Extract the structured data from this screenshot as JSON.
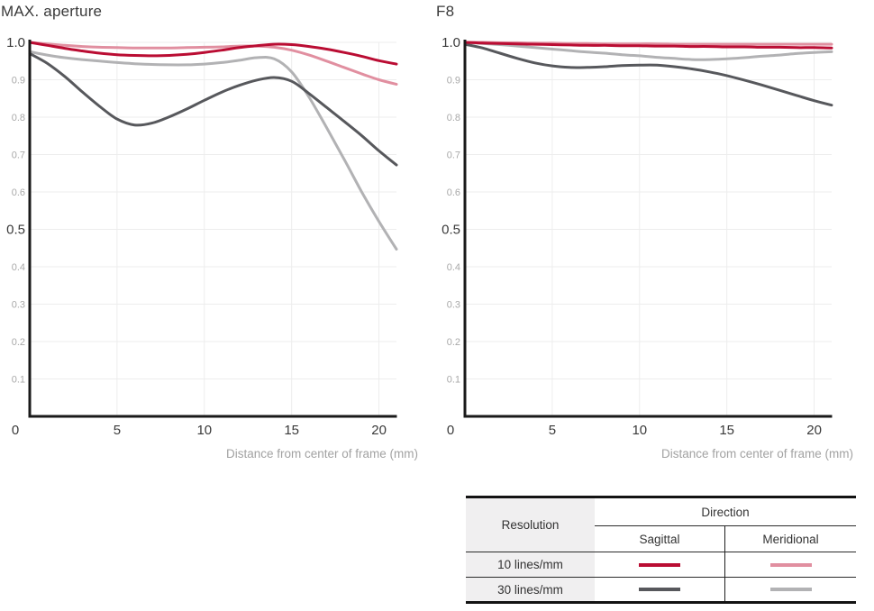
{
  "chart_data": [
    {
      "type": "line",
      "title": "MAX. aperture",
      "xlabel": "Distance from center of frame (mm)",
      "ylabel": "",
      "xlim": [
        0,
        21
      ],
      "ylim": [
        0,
        1.0
      ],
      "x_ticks": [
        0,
        5,
        10,
        15,
        20
      ],
      "y_ticks_major": [
        1.0,
        0.5
      ],
      "y_ticks_minor": [
        0.9,
        0.8,
        0.7,
        0.6,
        0.4,
        0.3,
        0.2,
        0.1
      ],
      "grid": true,
      "legend_position": "separate-table",
      "x": [
        0,
        1,
        2,
        3,
        4,
        5,
        6,
        7,
        8,
        9,
        10,
        11,
        12,
        13,
        14,
        15,
        16,
        17,
        18,
        19,
        20,
        21
      ],
      "series": [
        {
          "name": "Sagittal 10 lines/mm",
          "color": "#ba0d33",
          "values": [
            1.0,
            0.992,
            0.984,
            0.977,
            0.971,
            0.967,
            0.965,
            0.964,
            0.965,
            0.968,
            0.973,
            0.979,
            0.986,
            0.991,
            0.995,
            0.994,
            0.989,
            0.982,
            0.973,
            0.963,
            0.951,
            0.942
          ]
        },
        {
          "name": "Meridional 10 lines/mm",
          "color": "#e18fa0",
          "values": [
            1.0,
            0.996,
            0.992,
            0.989,
            0.987,
            0.986,
            0.985,
            0.985,
            0.985,
            0.986,
            0.987,
            0.988,
            0.99,
            0.99,
            0.987,
            0.979,
            0.966,
            0.95,
            0.933,
            0.916,
            0.9,
            0.888
          ]
        },
        {
          "name": "Sagittal 30 lines/mm",
          "color": "#57585c",
          "values": [
            0.97,
            0.944,
            0.909,
            0.868,
            0.829,
            0.795,
            0.779,
            0.784,
            0.801,
            0.822,
            0.845,
            0.867,
            0.885,
            0.899,
            0.906,
            0.896,
            0.863,
            0.826,
            0.789,
            0.751,
            0.71,
            0.672
          ]
        },
        {
          "name": "Meridional 30 lines/mm",
          "color": "#b2b2b4",
          "values": [
            0.975,
            0.966,
            0.959,
            0.954,
            0.95,
            0.946,
            0.943,
            0.941,
            0.94,
            0.94,
            0.942,
            0.946,
            0.952,
            0.959,
            0.956,
            0.921,
            0.853,
            0.772,
            0.688,
            0.601,
            0.521,
            0.447
          ]
        }
      ]
    },
    {
      "type": "line",
      "title": "F8",
      "xlabel": "Distance from center of frame (mm)",
      "ylabel": "",
      "xlim": [
        0,
        21
      ],
      "ylim": [
        0,
        1.0
      ],
      "x_ticks": [
        0,
        5,
        10,
        15,
        20
      ],
      "y_ticks_major": [
        1.0,
        0.5
      ],
      "y_ticks_minor": [
        0.9,
        0.8,
        0.7,
        0.6,
        0.4,
        0.3,
        0.2,
        0.1
      ],
      "grid": true,
      "legend_position": "separate-table",
      "x": [
        0,
        1,
        2,
        3,
        4,
        5,
        6,
        7,
        8,
        9,
        10,
        11,
        12,
        13,
        14,
        15,
        16,
        17,
        18,
        19,
        20,
        21
      ],
      "series": [
        {
          "name": "Sagittal 10 lines/mm",
          "color": "#ba0d33",
          "values": [
            1.0,
            0.998,
            0.997,
            0.996,
            0.995,
            0.994,
            0.993,
            0.992,
            0.992,
            0.991,
            0.991,
            0.99,
            0.99,
            0.989,
            0.989,
            0.988,
            0.988,
            0.987,
            0.987,
            0.986,
            0.986,
            0.985
          ]
        },
        {
          "name": "Meridional 10 lines/mm",
          "color": "#e18fa0",
          "values": [
            1.0,
            1.0,
            0.999,
            0.999,
            0.998,
            0.998,
            0.997,
            0.997,
            0.996,
            0.996,
            0.996,
            0.996,
            0.995,
            0.995,
            0.995,
            0.995,
            0.995,
            0.995,
            0.995,
            0.995,
            0.995,
            0.995
          ]
        },
        {
          "name": "Sagittal 30 lines/mm",
          "color": "#57585c",
          "values": [
            0.995,
            0.985,
            0.971,
            0.957,
            0.945,
            0.937,
            0.933,
            0.933,
            0.935,
            0.938,
            0.939,
            0.939,
            0.935,
            0.929,
            0.921,
            0.911,
            0.899,
            0.886,
            0.872,
            0.858,
            0.844,
            0.832
          ]
        },
        {
          "name": "Meridional 30 lines/mm",
          "color": "#b2b2b4",
          "values": [
            1.0,
            0.997,
            0.994,
            0.99,
            0.986,
            0.982,
            0.978,
            0.974,
            0.971,
            0.967,
            0.964,
            0.96,
            0.957,
            0.954,
            0.954,
            0.956,
            0.959,
            0.963,
            0.966,
            0.97,
            0.973,
            0.975
          ]
        }
      ]
    }
  ],
  "legend_table": {
    "resolution_header": "Resolution",
    "direction_header": "Direction",
    "columns": [
      "Sagittal",
      "Meridional"
    ],
    "rows": [
      {
        "label": "10 lines/mm",
        "sagittal_color": "#ba0d33",
        "meridional_color": "#e18fa0"
      },
      {
        "label": "30 lines/mm",
        "sagittal_color": "#57585c",
        "meridional_color": "#b2b2b4"
      }
    ]
  },
  "colors": {
    "axis": "#1a1a1a",
    "grid": "#ededed",
    "tick_major": "#3a3a3a",
    "tick_minor": "#a9a9a9",
    "axis_label": "#a2a2a2",
    "table_header_bg": "#f0eff0"
  }
}
